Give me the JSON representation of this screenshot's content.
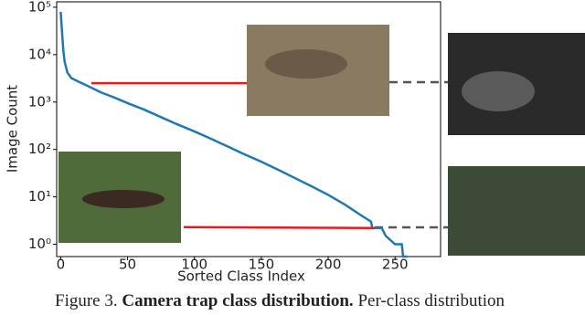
{
  "chart_data": {
    "type": "line",
    "xlabel": "Sorted Class Index",
    "ylabel": "Image Count",
    "x": [
      0,
      1,
      2,
      3,
      5,
      8,
      12,
      20,
      30,
      40,
      50,
      62,
      75,
      87,
      100,
      112,
      125,
      137,
      150,
      162,
      175,
      187,
      200,
      212,
      225,
      232,
      233,
      240,
      243,
      250,
      255,
      256,
      259
    ],
    "series": [
      {
        "color": "#1f77b4",
        "values": [
          80000,
          30000,
          12000,
          7000,
          4200,
          3200,
          2800,
          2200,
          1600,
          1250,
          950,
          700,
          480,
          340,
          240,
          170,
          115,
          80,
          55,
          38,
          25,
          17,
          11,
          7,
          4,
          3,
          2.2,
          2.2,
          1.5,
          1.0,
          1.0,
          0.55,
          0.55
        ]
      }
    ],
    "highlight_lines": [
      {
        "x": [
          23,
          140
        ],
        "y": [
          2500,
          2500
        ],
        "color": "#e8191c"
      },
      {
        "x": [
          92,
          235
        ],
        "y": [
          2.3,
          2.2
        ],
        "color": "#e8191c"
      }
    ],
    "xlim": [
      -3,
      284
    ],
    "ylim": [
      0.55,
      130000
    ],
    "log_y": true,
    "xticks": [
      0,
      50,
      100,
      150,
      200,
      250
    ],
    "yticks": [
      {
        "value": 1,
        "label": "10⁰"
      },
      {
        "value": 10,
        "label": "10¹"
      },
      {
        "value": 100,
        "label": "10²"
      },
      {
        "value": 1000,
        "label": "10³"
      },
      {
        "value": 10000,
        "label": "10⁴"
      },
      {
        "value": 100000,
        "label": "10⁵"
      }
    ]
  },
  "caption": {
    "label": "Figure 3.",
    "title": "Camera trap class distribution.",
    "text": "Per-class distribution"
  }
}
